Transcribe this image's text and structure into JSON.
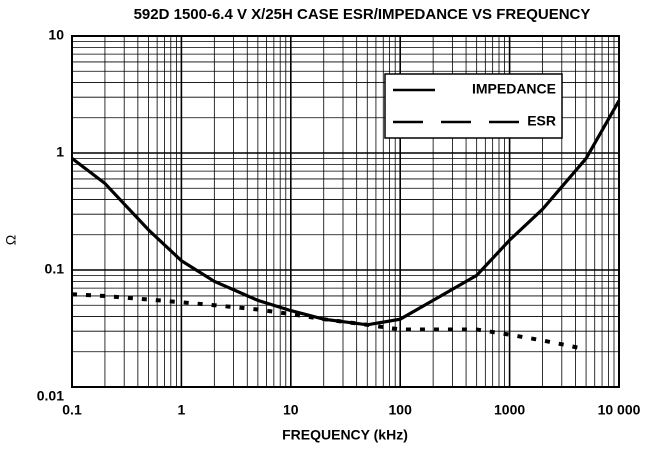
{
  "chart_data": {
    "type": "line",
    "title": "592D 1500-6.4 V X/25H CASE ESR/IMPEDANCE VS FREQUENCY",
    "x_label": "FREQUENCY (kHz)",
    "y_label": "Ω",
    "x": [
      0.1,
      0.2,
      0.5,
      1,
      2,
      5,
      10,
      20,
      50,
      100,
      200,
      500,
      1000,
      2000,
      5000,
      10000
    ],
    "series": [
      {
        "name": "IMPEDANCE",
        "color": "#000000",
        "line_style": "solid",
        "values": [
          0.9,
          0.55,
          0.22,
          0.12,
          0.08,
          0.055,
          0.045,
          0.038,
          0.034,
          0.038,
          0.055,
          0.09,
          0.18,
          0.33,
          0.9,
          2.8
        ]
      },
      {
        "name": "ESR",
        "color": "#000000",
        "line_style": "dashed",
        "values": [
          0.062,
          0.06,
          0.056,
          0.053,
          0.05,
          0.046,
          0.042,
          0.038,
          0.034,
          0.031,
          0.031,
          0.031,
          0.028,
          0.025,
          0.021,
          null
        ]
      }
    ],
    "x_log": true,
    "y_log": true,
    "xlim": [
      0.1,
      10000
    ],
    "ylim": [
      0.01,
      10
    ],
    "xticks": [
      0.1,
      1,
      10,
      100,
      1000,
      {
        "value": 10000,
        "label": "10 000"
      }
    ],
    "yticks": [
      0.01,
      0.1,
      1,
      10
    ],
    "grid": true,
    "legend": "upper right"
  }
}
